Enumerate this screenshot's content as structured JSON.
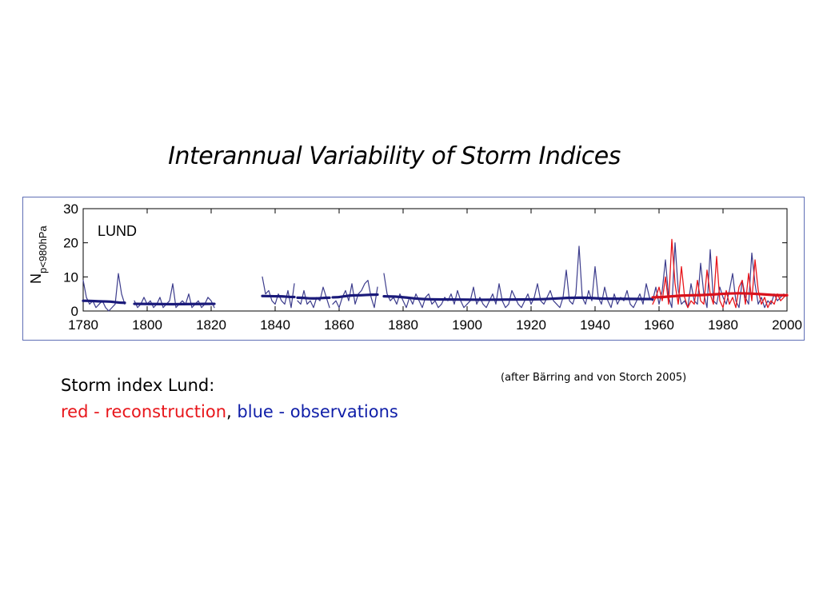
{
  "slide": {
    "title": "Interannual Variability of Storm Indices",
    "caption_title": "Storm index Lund:",
    "caption_red": "red - reconstruction",
    "caption_sep": ", ",
    "caption_blue": "blue - observations",
    "source": "(after Bärring and von Storch 2005)"
  },
  "chart_data": {
    "type": "line",
    "panel_label": "LUND",
    "ylabel_main": "N",
    "ylabel_sub": "p<980hPa",
    "xlim": [
      1780,
      2000
    ],
    "ylim": [
      0,
      30
    ],
    "xticks": [
      1780,
      1800,
      1820,
      1840,
      1860,
      1880,
      1900,
      1920,
      1940,
      1960,
      1980,
      2000
    ],
    "yticks": [
      0,
      10,
      20,
      30
    ],
    "grid": false,
    "colors": {
      "observations": "#3c3c8c",
      "reconstruction": "#e8161b",
      "obs_smooth": "#1a1a7a",
      "rec_smooth": "#d8121c"
    },
    "series": [
      {
        "role": "observations",
        "segments": [
          {
            "x": [
              1780,
              1781,
              1782,
              1783,
              1784,
              1785,
              1786,
              1787,
              1788,
              1789,
              1790,
              1791,
              1792,
              1793
            ],
            "y": [
              9,
              4,
              2,
              3,
              1,
              2,
              3,
              1,
              0,
              1,
              2,
              11,
              5,
              2
            ]
          },
          {
            "x": [
              1796,
              1797,
              1798,
              1799,
              1800,
              1801,
              1802,
              1803,
              1804,
              1805,
              1806,
              1807,
              1808,
              1809,
              1810,
              1811,
              1812,
              1813,
              1814,
              1815,
              1816,
              1817,
              1818,
              1819,
              1820,
              1821
            ],
            "y": [
              3,
              1,
              2,
              4,
              2,
              3,
              1,
              2,
              4,
              1,
              2,
              3,
              8,
              1,
              2,
              3,
              2,
              5,
              1,
              2,
              3,
              1,
              2,
              4,
              3,
              1
            ]
          },
          {
            "x": [
              1836,
              1837,
              1838,
              1839,
              1840,
              1841,
              1842,
              1843,
              1844,
              1845,
              1846
            ],
            "y": [
              10,
              5,
              6,
              3,
              2,
              5,
              3,
              2,
              6,
              1,
              8
            ]
          },
          {
            "x": [
              1847,
              1848,
              1849,
              1850,
              1851,
              1852,
              1853,
              1854,
              1855,
              1856,
              1857
            ],
            "y": [
              3,
              2,
              6,
              2,
              3,
              1,
              4,
              3,
              7,
              4,
              1
            ]
          },
          {
            "x": [
              1858,
              1859,
              1860,
              1861,
              1862,
              1863,
              1864,
              1865,
              1866,
              1867,
              1868,
              1869,
              1870,
              1871,
              1872
            ],
            "y": [
              2,
              3,
              1,
              4,
              6,
              3,
              8,
              2,
              5,
              6,
              8,
              9,
              4,
              1,
              7
            ]
          },
          {
            "x": [
              1874,
              1875,
              1876,
              1877,
              1878,
              1879,
              1880,
              1881,
              1882,
              1883,
              1884,
              1885,
              1886,
              1887,
              1888,
              1889,
              1890,
              1891,
              1892,
              1893,
              1894,
              1895,
              1896,
              1897,
              1898,
              1899,
              1900,
              1901,
              1902,
              1903,
              1904,
              1905,
              1906,
              1907,
              1908,
              1909,
              1910,
              1911,
              1912,
              1913,
              1914,
              1915,
              1916,
              1917,
              1918,
              1919,
              1920,
              1921,
              1922,
              1923,
              1924,
              1925,
              1926,
              1927,
              1928,
              1929,
              1930,
              1931,
              1932,
              1933,
              1934,
              1935,
              1936,
              1937,
              1938,
              1939,
              1940,
              1941,
              1942,
              1943,
              1944,
              1945,
              1946,
              1947,
              1948,
              1949,
              1950,
              1951,
              1952,
              1953,
              1954,
              1955,
              1956,
              1957,
              1958,
              1959,
              1960,
              1961,
              1962,
              1963,
              1964,
              1965,
              1966,
              1967,
              1968,
              1969,
              1970,
              1971,
              1972,
              1973,
              1974,
              1975,
              1976,
              1977,
              1978,
              1979,
              1980,
              1981,
              1982,
              1983,
              1984,
              1985,
              1986,
              1987,
              1988,
              1989,
              1990,
              1991,
              1992,
              1993,
              1994,
              1995,
              1996,
              1997,
              1998,
              1999
            ],
            "y": [
              11,
              5,
              3,
              4,
              2,
              5,
              3,
              1,
              4,
              2,
              5,
              3,
              1,
              4,
              5,
              2,
              3,
              1,
              2,
              4,
              3,
              5,
              2,
              6,
              3,
              1,
              2,
              3,
              7,
              2,
              4,
              2,
              1,
              3,
              5,
              2,
              8,
              3,
              1,
              2,
              6,
              4,
              2,
              1,
              3,
              5,
              2,
              4,
              8,
              3,
              2,
              4,
              6,
              3,
              2,
              1,
              4,
              12,
              3,
              2,
              5,
              19,
              4,
              2,
              6,
              3,
              13,
              4,
              2,
              7,
              3,
              1,
              5,
              2,
              4,
              3,
              6,
              2,
              1,
              3,
              5,
              2,
              8,
              4,
              3,
              7,
              2,
              6,
              15,
              4,
              1,
              20,
              6,
              2,
              3,
              1,
              8,
              3,
              2,
              14,
              5,
              1,
              18,
              3,
              2,
              7,
              4,
              2,
              6,
              11,
              3,
              1,
              9,
              4,
              2,
              17,
              8,
              2,
              4,
              1,
              3,
              2,
              5,
              3,
              4,
              5
            ]
          }
        ]
      },
      {
        "role": "reconstruction",
        "segments": [
          {
            "x": [
              1958,
              1959,
              1960,
              1961,
              1962,
              1963,
              1964,
              1965,
              1966,
              1967,
              1968,
              1969,
              1970,
              1971,
              1972,
              1973,
              1974,
              1975,
              1976,
              1977,
              1978,
              1979,
              1980,
              1981,
              1982,
              1983,
              1984,
              1985,
              1986,
              1987,
              1988,
              1989,
              1990,
              1991,
              1992,
              1993,
              1994,
              1995,
              1996,
              1997,
              1998,
              1999,
              2000
            ],
            "y": [
              2,
              4,
              7,
              3,
              10,
              2,
              21,
              8,
              2,
              13,
              4,
              1,
              3,
              2,
              9,
              3,
              2,
              12,
              5,
              2,
              16,
              3,
              1,
              6,
              2,
              4,
              1,
              7,
              9,
              2,
              11,
              3,
              15,
              6,
              2,
              4,
              1,
              3,
              2,
              5,
              3,
              4,
              5
            ]
          }
        ]
      },
      {
        "role": "obs_smooth",
        "segments": [
          {
            "x": [
              1780,
              1787,
              1793
            ],
            "y": [
              3.0,
              2.8,
              2.4
            ]
          },
          {
            "x": [
              1796,
              1808,
              1821
            ],
            "y": [
              2.1,
              2.0,
              2.1
            ]
          },
          {
            "x": [
              1836,
              1841,
              1846
            ],
            "y": [
              4.4,
              4.3,
              4.1
            ]
          },
          {
            "x": [
              1847,
              1852,
              1857
            ],
            "y": [
              3.9,
              3.7,
              3.9
            ]
          },
          {
            "x": [
              1858,
              1865,
              1872
            ],
            "y": [
              4.0,
              4.6,
              4.8
            ]
          },
          {
            "x": [
              1874,
              1890,
              1905,
              1920,
              1935,
              1945,
              1958
            ],
            "y": [
              4.3,
              3.4,
              3.3,
              3.4,
              3.9,
              3.6,
              3.5
            ]
          }
        ]
      },
      {
        "role": "rec_smooth",
        "segments": [
          {
            "x": [
              1958,
              1970,
              1985,
              2000
            ],
            "y": [
              4.0,
              4.6,
              5.2,
              4.6
            ]
          }
        ]
      }
    ]
  }
}
